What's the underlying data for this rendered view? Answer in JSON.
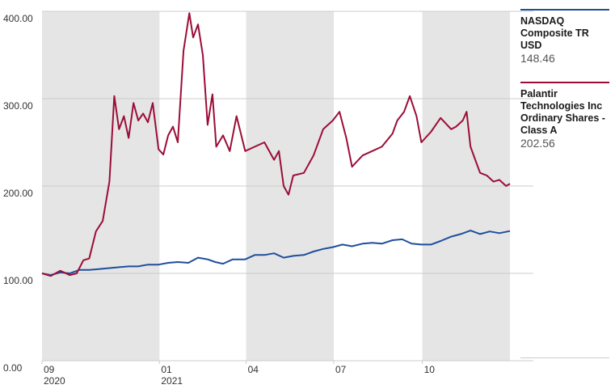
{
  "colors": {
    "shade": "#e5e5e5",
    "grid": "#cccccc",
    "axis_text": "#333333",
    "nasdaq": "#1f4e9c",
    "palantir": "#9b0d37"
  },
  "legend": {
    "items": [
      {
        "name": "NASDAQ Composite TR USD",
        "value": "148.46"
      },
      {
        "name": "Palantir Technologies Inc Ordinary Shares - Class A",
        "value": "202.56"
      }
    ]
  },
  "chart_data": {
    "type": "line",
    "title": "",
    "xlabel": "",
    "ylabel": "",
    "ylim": [
      0,
      400
    ],
    "y_ticks": [
      "0.00",
      "100.00",
      "200.00",
      "300.00",
      "400.00"
    ],
    "x_ticks": [
      {
        "month": "09",
        "year": "2020",
        "date": "2020-09"
      },
      {
        "month": "01",
        "year": "2021",
        "date": "2021-01"
      },
      {
        "month": "04",
        "year": "",
        "date": "2021-04"
      },
      {
        "month": "07",
        "year": "",
        "date": "2021-07"
      },
      {
        "month": "10",
        "year": "",
        "date": "2021-10"
      }
    ],
    "shaded_periods": [
      [
        "2020-09",
        "2021-01"
      ],
      [
        "2021-04",
        "2021-07"
      ],
      [
        "2021-10",
        "2021-12-31"
      ]
    ],
    "x_range": [
      "2020-09-01",
      "2021-12-31"
    ],
    "grid": true,
    "legend_position": "right",
    "series": [
      {
        "name": "NASDAQ Composite TR USD",
        "color": "#1f4e9c",
        "points": [
          [
            "2020-09-01",
            100
          ],
          [
            "2020-09-10",
            98
          ],
          [
            "2020-09-20",
            101
          ],
          [
            "2020-09-30",
            100
          ],
          [
            "2020-10-10",
            104
          ],
          [
            "2020-10-20",
            104
          ],
          [
            "2020-10-31",
            105
          ],
          [
            "2020-11-10",
            106
          ],
          [
            "2020-11-20",
            107
          ],
          [
            "2020-11-30",
            108
          ],
          [
            "2020-12-10",
            108
          ],
          [
            "2020-12-20",
            110
          ],
          [
            "2020-12-31",
            110
          ],
          [
            "2021-01-10",
            112
          ],
          [
            "2021-01-20",
            113
          ],
          [
            "2021-01-31",
            112
          ],
          [
            "2021-02-10",
            118
          ],
          [
            "2021-02-20",
            116
          ],
          [
            "2021-02-28",
            113
          ],
          [
            "2021-03-08",
            111
          ],
          [
            "2021-03-18",
            116
          ],
          [
            "2021-03-31",
            116
          ],
          [
            "2021-04-10",
            121
          ],
          [
            "2021-04-20",
            121
          ],
          [
            "2021-04-30",
            123
          ],
          [
            "2021-05-10",
            118
          ],
          [
            "2021-05-20",
            120
          ],
          [
            "2021-05-31",
            121
          ],
          [
            "2021-06-10",
            125
          ],
          [
            "2021-06-20",
            128
          ],
          [
            "2021-06-30",
            130
          ],
          [
            "2021-07-10",
            133
          ],
          [
            "2021-07-20",
            131
          ],
          [
            "2021-07-31",
            134
          ],
          [
            "2021-08-10",
            135
          ],
          [
            "2021-08-20",
            134
          ],
          [
            "2021-08-31",
            138
          ],
          [
            "2021-09-10",
            139
          ],
          [
            "2021-09-20",
            134
          ],
          [
            "2021-09-30",
            133
          ],
          [
            "2021-10-10",
            133
          ],
          [
            "2021-10-20",
            137
          ],
          [
            "2021-10-31",
            142
          ],
          [
            "2021-11-10",
            145
          ],
          [
            "2021-11-20",
            149
          ],
          [
            "2021-11-30",
            145
          ],
          [
            "2021-12-10",
            148
          ],
          [
            "2021-12-20",
            146
          ],
          [
            "2021-12-31",
            148.46
          ]
        ]
      },
      {
        "name": "Palantir Technologies Inc Ordinary Shares - Class A",
        "color": "#9b0d37",
        "points": [
          [
            "2020-09-01",
            100
          ],
          [
            "2020-09-10",
            97
          ],
          [
            "2020-09-20",
            103
          ],
          [
            "2020-09-30",
            98
          ],
          [
            "2020-10-07",
            100
          ],
          [
            "2020-10-14",
            115
          ],
          [
            "2020-10-20",
            117
          ],
          [
            "2020-10-27",
            148
          ],
          [
            "2020-11-03",
            160
          ],
          [
            "2020-11-10",
            205
          ],
          [
            "2020-11-15",
            303
          ],
          [
            "2020-11-20",
            265
          ],
          [
            "2020-11-25",
            280
          ],
          [
            "2020-11-30",
            255
          ],
          [
            "2020-12-05",
            295
          ],
          [
            "2020-12-10",
            275
          ],
          [
            "2020-12-15",
            283
          ],
          [
            "2020-12-20",
            273
          ],
          [
            "2020-12-25",
            295
          ],
          [
            "2020-12-31",
            242
          ],
          [
            "2021-01-05",
            236
          ],
          [
            "2021-01-10",
            258
          ],
          [
            "2021-01-15",
            268
          ],
          [
            "2021-01-20",
            250
          ],
          [
            "2021-01-26",
            355
          ],
          [
            "2021-02-01",
            398
          ],
          [
            "2021-02-05",
            370
          ],
          [
            "2021-02-10",
            385
          ],
          [
            "2021-02-15",
            350
          ],
          [
            "2021-02-20",
            270
          ],
          [
            "2021-02-25",
            305
          ],
          [
            "2021-03-01",
            245
          ],
          [
            "2021-03-08",
            258
          ],
          [
            "2021-03-15",
            240
          ],
          [
            "2021-03-22",
            280
          ],
          [
            "2021-03-31",
            240
          ],
          [
            "2021-04-10",
            245
          ],
          [
            "2021-04-20",
            250
          ],
          [
            "2021-04-30",
            230
          ],
          [
            "2021-05-05",
            240
          ],
          [
            "2021-05-10",
            200
          ],
          [
            "2021-05-15",
            190
          ],
          [
            "2021-05-20",
            212
          ],
          [
            "2021-05-31",
            215
          ],
          [
            "2021-06-10",
            235
          ],
          [
            "2021-06-20",
            265
          ],
          [
            "2021-06-30",
            275
          ],
          [
            "2021-07-07",
            285
          ],
          [
            "2021-07-14",
            255
          ],
          [
            "2021-07-20",
            222
          ],
          [
            "2021-07-31",
            235
          ],
          [
            "2021-08-10",
            240
          ],
          [
            "2021-08-20",
            245
          ],
          [
            "2021-08-31",
            260
          ],
          [
            "2021-09-05",
            275
          ],
          [
            "2021-09-12",
            285
          ],
          [
            "2021-09-18",
            303
          ],
          [
            "2021-09-25",
            280
          ],
          [
            "2021-09-30",
            250
          ],
          [
            "2021-10-10",
            262
          ],
          [
            "2021-10-20",
            278
          ],
          [
            "2021-10-31",
            265
          ],
          [
            "2021-11-05",
            268
          ],
          [
            "2021-11-12",
            275
          ],
          [
            "2021-11-16",
            285
          ],
          [
            "2021-11-20",
            245
          ],
          [
            "2021-11-25",
            230
          ],
          [
            "2021-11-30",
            215
          ],
          [
            "2021-12-07",
            212
          ],
          [
            "2021-12-14",
            205
          ],
          [
            "2021-12-20",
            207
          ],
          [
            "2021-12-27",
            200
          ],
          [
            "2021-12-31",
            202.56
          ]
        ]
      }
    ]
  }
}
